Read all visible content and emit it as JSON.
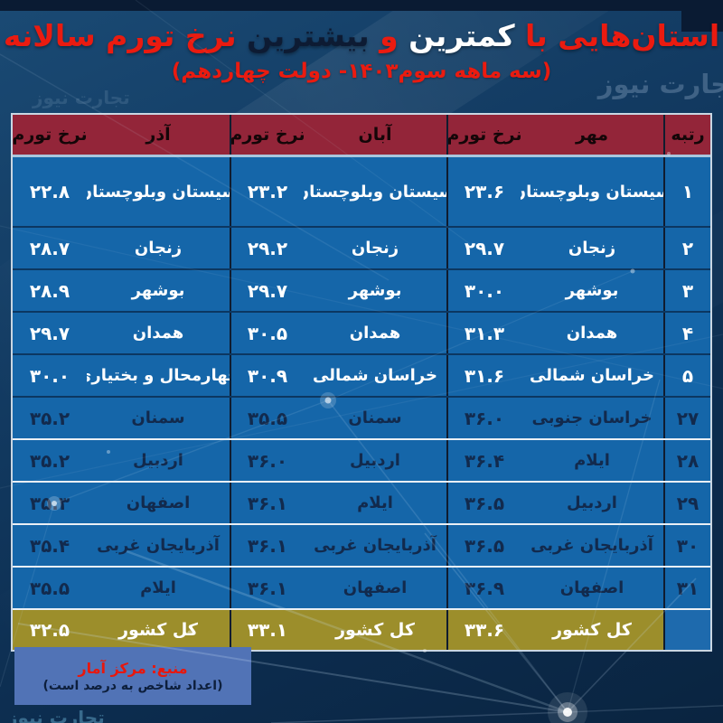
{
  "title": {
    "part1": "استان‌هایی با ",
    "part2": "کمترین",
    "part3": " و ",
    "part4": "بیشترین",
    "part5": " نرخ تورم سالانه",
    "subtitle": "(سه ماهه سوم۱۴۰۳- دولت چهاردهم)"
  },
  "watermark": "تجارت نیوز",
  "table": {
    "headers": {
      "rank": "رتبه",
      "rate": "نرخ تورم",
      "months": [
        "مهر",
        "آبان",
        "آذر"
      ]
    },
    "rows": [
      {
        "rank": "۱",
        "group": "low",
        "mehr": {
          "province": "سیستان وبلوچستان",
          "value": "۲۳.۶"
        },
        "aban": {
          "province": "سیستان وبلوچستان",
          "value": "۲۳.۲"
        },
        "azar": {
          "province": "سیستان وبلوچستان",
          "value": "۲۲.۸"
        }
      },
      {
        "rank": "۲",
        "group": "low",
        "mehr": {
          "province": "زنجان",
          "value": "۲۹.۷"
        },
        "aban": {
          "province": "زنجان",
          "value": "۲۹.۲"
        },
        "azar": {
          "province": "زنجان",
          "value": "۲۸.۷"
        }
      },
      {
        "rank": "۳",
        "group": "low",
        "mehr": {
          "province": "بوشهر",
          "value": "۳۰.۰"
        },
        "aban": {
          "province": "بوشهر",
          "value": "۲۹.۷"
        },
        "azar": {
          "province": "بوشهر",
          "value": "۲۸.۹"
        }
      },
      {
        "rank": "۴",
        "group": "low",
        "mehr": {
          "province": "همدان",
          "value": "۳۱.۳"
        },
        "aban": {
          "province": "همدان",
          "value": "۳۰.۵"
        },
        "azar": {
          "province": "همدان",
          "value": "۲۹.۷"
        }
      },
      {
        "rank": "۵",
        "group": "low",
        "mehr": {
          "province": "خراسان شمالی",
          "value": "۳۱.۶"
        },
        "aban": {
          "province": "خراسان شمالی",
          "value": "۳۰.۹"
        },
        "azar": {
          "province": "چهارمحال و بختیاری",
          "value": "۳۰.۰"
        }
      },
      {
        "rank": "۲۷",
        "group": "high",
        "mehr": {
          "province": "خراسان جنوبی",
          "value": "۳۶.۰"
        },
        "aban": {
          "province": "سمنان",
          "value": "۳۵.۵"
        },
        "azar": {
          "province": "سمنان",
          "value": "۳۵.۲"
        }
      },
      {
        "rank": "۲۸",
        "group": "high",
        "mehr": {
          "province": "ایلام",
          "value": "۳۶.۴"
        },
        "aban": {
          "province": "اردبیل",
          "value": "۳۶.۰"
        },
        "azar": {
          "province": "اردبیل",
          "value": "۳۵.۲"
        }
      },
      {
        "rank": "۲۹",
        "group": "high",
        "mehr": {
          "province": "اردبیل",
          "value": "۳۶.۵"
        },
        "aban": {
          "province": "ایلام",
          "value": "۳۶.۱"
        },
        "azar": {
          "province": "اصفهان",
          "value": "۳۵.۳"
        }
      },
      {
        "rank": "۳۰",
        "group": "high",
        "mehr": {
          "province": "آذربایجان غربی",
          "value": "۳۶.۵"
        },
        "aban": {
          "province": "آذربایجان غربی",
          "value": "۳۶.۱"
        },
        "azar": {
          "province": "آذربایجان غربی",
          "value": "۳۵.۴"
        }
      },
      {
        "rank": "۳۱",
        "group": "high",
        "mehr": {
          "province": "اصفهان",
          "value": "۳۶.۹"
        },
        "aban": {
          "province": "اصفهان",
          "value": "۳۶.۱"
        },
        "azar": {
          "province": "ایلام",
          "value": "۳۵.۵"
        }
      }
    ],
    "total": {
      "label": "کل کشور",
      "mehr": "۳۳.۶",
      "aban": "۳۳.۱",
      "azar": "۳۲.۵"
    }
  },
  "source": {
    "line1": "منبع: مرکز آمار",
    "line2": "(اعداد شاخص  به درصد است)"
  },
  "colors": {
    "title_red": "#ea1b10",
    "title_highlight_white": "#ffffff",
    "title_highlight_dark": "#0d1b33",
    "header_bg": "#932539",
    "body_bg": "#1566a9",
    "low_group_text": "#ffffff",
    "high_group_text": "#122a4d",
    "total_bg": "#9c8e2b",
    "total_text": "#ffffff",
    "source_box_bg": "#5173b6",
    "background": "#0e3355"
  },
  "chart_data": {
    "type": "table",
    "title": "استان‌هایی با کمترین و بیشترین نرخ تورم سالانه (سه ماهه سوم ۱۴۰۳ - دولت چهاردهم)",
    "unit": "درصد",
    "columns": [
      "رتبه",
      "استان (مهر)",
      "نرخ تورم مهر",
      "استان (آبان)",
      "نرخ تورم آبان",
      "استان (آذر)",
      "نرخ تورم آذر"
    ],
    "rows": [
      [
        1,
        "سیستان وبلوچستان",
        23.6,
        "سیستان وبلوچستان",
        23.2,
        "سیستان وبلوچستان",
        22.8
      ],
      [
        2,
        "زنجان",
        29.7,
        "زنجان",
        29.2,
        "زنجان",
        28.7
      ],
      [
        3,
        "بوشهر",
        30.0,
        "بوشهر",
        29.7,
        "بوشهر",
        28.9
      ],
      [
        4,
        "همدان",
        31.3,
        "همدان",
        30.5,
        "همدان",
        29.7
      ],
      [
        5,
        "خراسان شمالی",
        31.6,
        "خراسان شمالی",
        30.9,
        "چهارمحال و بختیاری",
        30.0
      ],
      [
        27,
        "خراسان جنوبی",
        36.0,
        "سمنان",
        35.5,
        "سمنان",
        35.2
      ],
      [
        28,
        "ایلام",
        36.4,
        "اردبیل",
        36.0,
        "اردبیل",
        35.2
      ],
      [
        29,
        "اردبیل",
        36.5,
        "ایلام",
        36.1,
        "اصفهان",
        35.3
      ],
      [
        30,
        "آذربایجان غربی",
        36.5,
        "آذربایجان غربی",
        36.1,
        "آذربایجان غربی",
        35.4
      ],
      [
        31,
        "اصفهان",
        36.9,
        "اصفهان",
        36.1,
        "ایلام",
        35.5
      ]
    ],
    "total_row": {
      "label": "کل کشور",
      "mehr": 33.6,
      "aban": 33.1,
      "azar": 32.5
    }
  }
}
